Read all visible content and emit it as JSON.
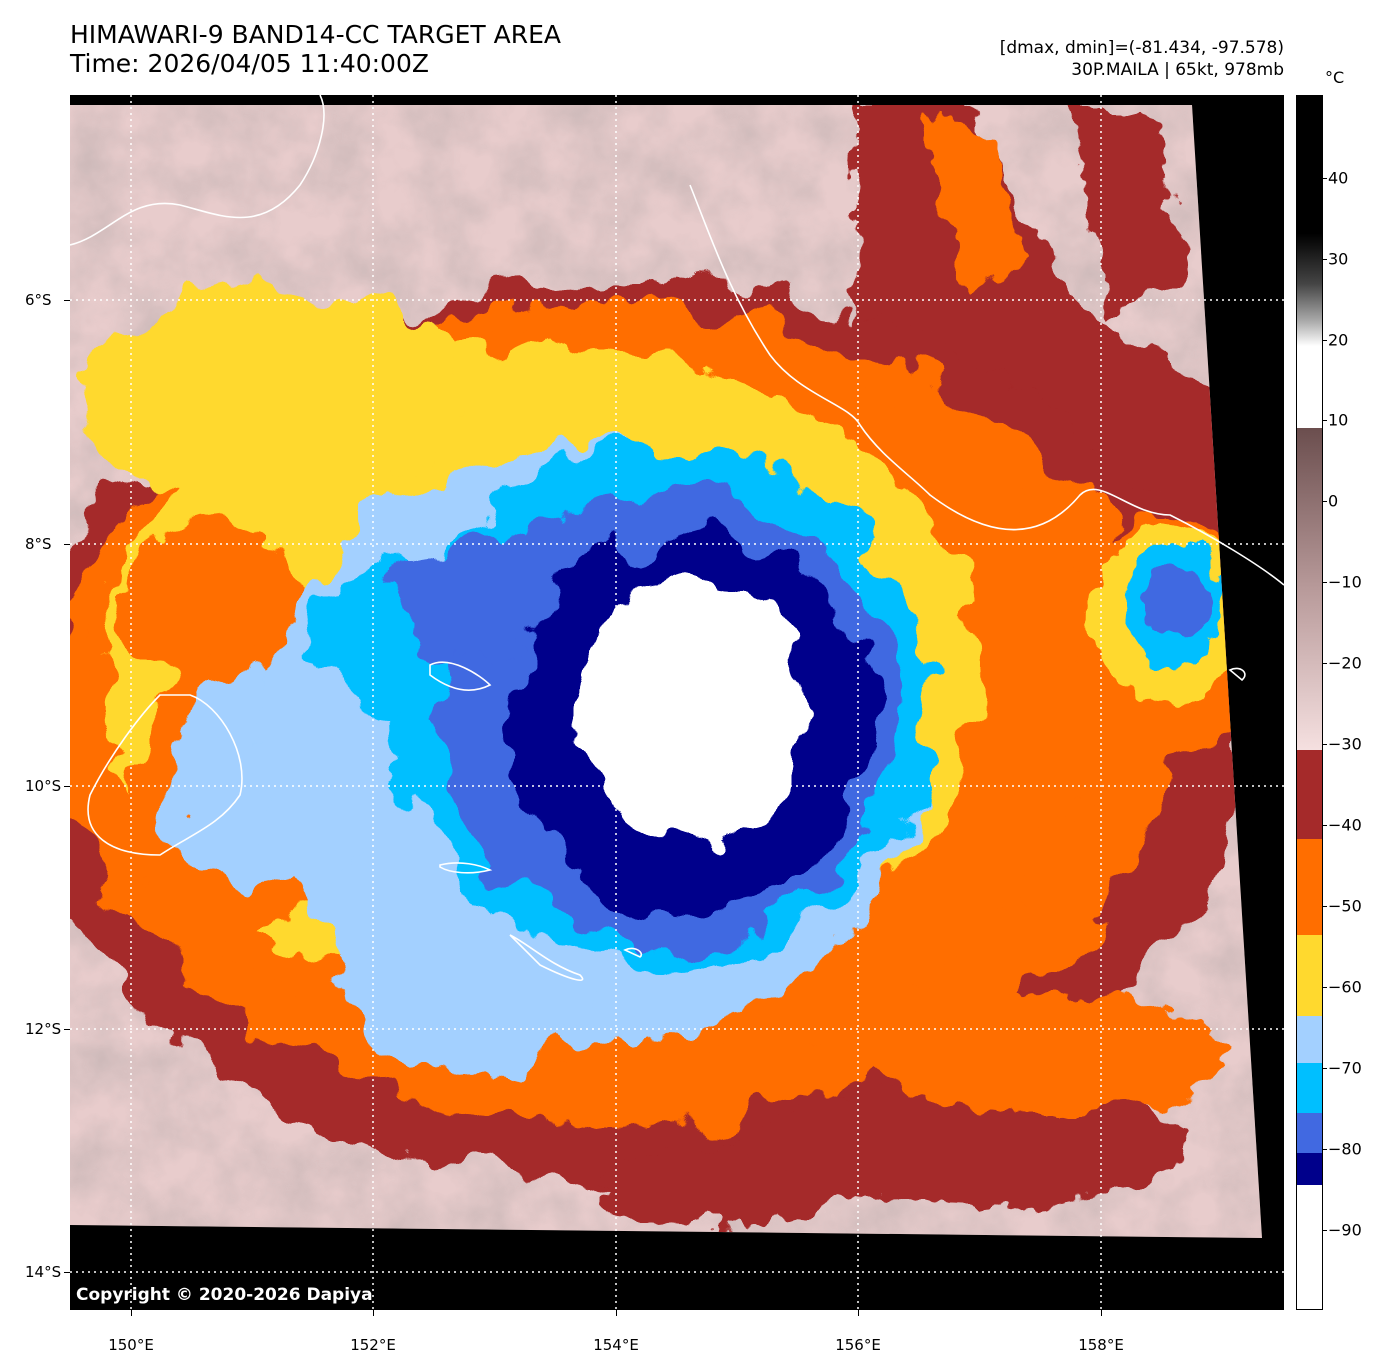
{
  "header": {
    "title_line1": "HIMAWARI-9 BAND14-CC TARGET AREA",
    "title_line2": "Time: 2026/04/05 11:40:00Z",
    "dminmax": "[dmax, dmin]=(-81.434, -97.578)",
    "storm": "30P.MAILA | 65kt, 978mb"
  },
  "map": {
    "copyright": "Copyright © 2020-2026 Dapiya",
    "lat_labels": [
      "6°S",
      "8°S",
      "10°S",
      "12°S",
      "14°S"
    ],
    "lon_labels": [
      "150°E",
      "152°E",
      "154°E",
      "156°E",
      "158°E"
    ],
    "gridlines": "dotted white",
    "storm_center": {
      "lat": -9.2,
      "lon": 154.7
    }
  },
  "colorbar": {
    "unit": "°C",
    "labels": [
      "40",
      "30",
      "20",
      "10",
      "0",
      "−10",
      "−20",
      "−30",
      "−40",
      "−50",
      "−60",
      "−70",
      "−80",
      "−90"
    ],
    "colors": {
      "gray_warm": "#000000",
      "gray_mid": "#808080",
      "brown": "#7a5a5a",
      "pink": "#f3d9d9",
      "dark_red": "#a52a2a",
      "orange": "#ff6e00",
      "yellow": "#ffd92e",
      "light_blue": "#a3d0ff",
      "cyan": "#00bfff",
      "royal_blue": "#4169e1",
      "navy": "#00008b",
      "white": "#ffffff"
    }
  }
}
